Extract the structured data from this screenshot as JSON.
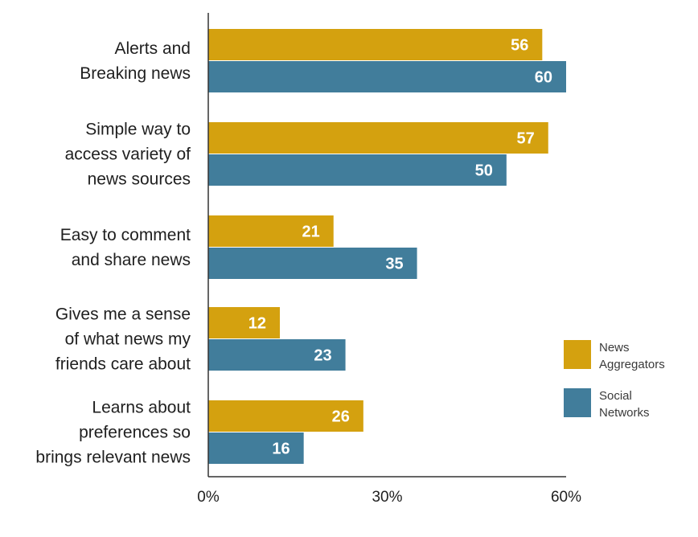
{
  "chart_data": {
    "type": "bar",
    "orientation": "horizontal",
    "categories": [
      [
        "Alerts and",
        "Breaking news"
      ],
      [
        "Simple way to",
        "access variety of",
        "news sources"
      ],
      [
        "Easy to comment",
        "and share news"
      ],
      [
        "Gives me a sense",
        "of what news my",
        "friends care about"
      ],
      [
        "Learns about",
        "preferences so",
        "brings relevant news"
      ]
    ],
    "series": [
      {
        "name": [
          "News",
          "Aggregators"
        ],
        "values": [
          56,
          57,
          21,
          12,
          26
        ],
        "color": "#d4a10f"
      },
      {
        "name": [
          "Social",
          "Networks"
        ],
        "values": [
          60,
          50,
          35,
          23,
          16
        ],
        "color": "#417d9b"
      }
    ],
    "xlim": [
      0,
      60
    ],
    "xticks": [
      {
        "value": 0,
        "label": "0%"
      },
      {
        "value": 30,
        "label": "30%"
      },
      {
        "value": 60,
        "label": "60%"
      }
    ],
    "title": "",
    "xlabel": "",
    "ylabel": "",
    "grid": false,
    "legend_position": "right"
  }
}
